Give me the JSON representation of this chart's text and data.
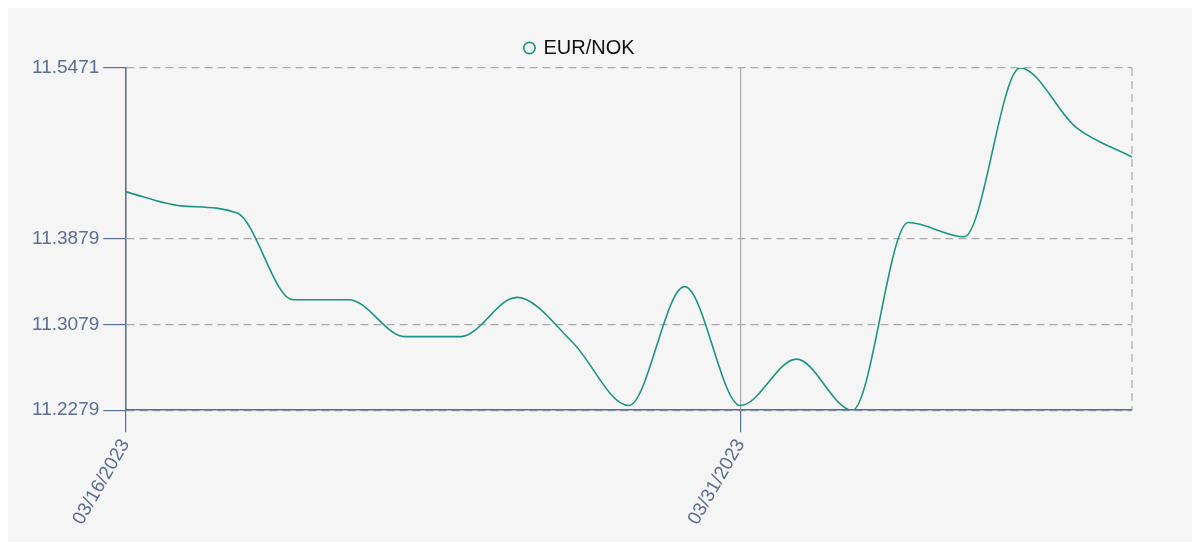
{
  "chart_data": {
    "type": "line",
    "categories": [
      "03/16/2023",
      null,
      null,
      null,
      null,
      null,
      null,
      null,
      null,
      null,
      null,
      "03/31/2023",
      null,
      null,
      null,
      null,
      null,
      null,
      null
    ],
    "series": [
      {
        "name": "EUR/NOK",
        "color": "#1a9582",
        "values": [
          11.4318,
          11.4185,
          11.4119,
          11.331,
          11.331,
          11.2966,
          11.2966,
          11.3332,
          11.2911,
          11.2323,
          11.3432,
          11.2323,
          11.2756,
          11.2279,
          11.403,
          11.3897,
          11.5471,
          11.4917,
          11.464
        ]
      }
    ],
    "ylim": [
      11.2279,
      11.5471
    ],
    "yticks": [
      11.2279,
      11.3079,
      11.3879,
      11.5471
    ],
    "grid": true,
    "legend": "top",
    "line_style": "solid"
  }
}
